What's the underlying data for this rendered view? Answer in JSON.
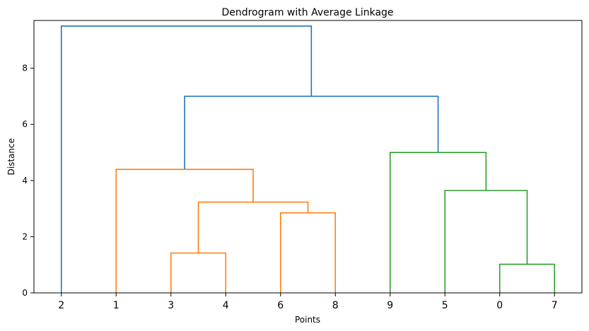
{
  "chart_data": {
    "type": "dendrogram",
    "title": "Dendrogram with Average Linkage",
    "xlabel": "Points",
    "ylabel": "Distance",
    "ylim": [
      0,
      9.7
    ],
    "yticks": [
      0,
      2,
      4,
      6,
      8
    ],
    "leaves": [
      "2",
      "1",
      "3",
      "4",
      "6",
      "8",
      "9",
      "5",
      "0",
      "7"
    ],
    "links": [
      {
        "x": [
          2.5,
          2.5,
          3.5,
          3.5
        ],
        "y": [
          0,
          1.42,
          1.42,
          0
        ],
        "color": "#ff7f0e"
      },
      {
        "x": [
          4.5,
          4.5,
          5.5,
          5.5
        ],
        "y": [
          0,
          2.85,
          2.85,
          0
        ],
        "color": "#ff7f0e"
      },
      {
        "x": [
          3.0,
          3.0,
          5.0,
          5.0
        ],
        "y": [
          1.42,
          3.23,
          3.23,
          2.85
        ],
        "color": "#ff7f0e"
      },
      {
        "x": [
          1.5,
          1.5,
          4.0,
          4.0
        ],
        "y": [
          0,
          4.4,
          4.4,
          3.23
        ],
        "color": "#ff7f0e"
      },
      {
        "x": [
          8.5,
          8.5,
          9.5,
          9.5
        ],
        "y": [
          0,
          1.02,
          1.02,
          0
        ],
        "color": "#2ca02c"
      },
      {
        "x": [
          7.5,
          7.5,
          9.0,
          9.0
        ],
        "y": [
          0,
          3.65,
          3.65,
          1.02
        ],
        "color": "#2ca02c"
      },
      {
        "x": [
          6.5,
          6.5,
          8.25,
          8.25
        ],
        "y": [
          0,
          5.0,
          5.0,
          3.65
        ],
        "color": "#2ca02c"
      },
      {
        "x": [
          2.75,
          2.75,
          7.375,
          7.375
        ],
        "y": [
          4.4,
          7.0,
          7.0,
          5.0
        ],
        "color": "#1f77b4"
      },
      {
        "x": [
          0.5,
          0.5,
          5.0625,
          5.0625
        ],
        "y": [
          0,
          9.5,
          9.5,
          7.0
        ],
        "color": "#1f77b4"
      }
    ]
  }
}
